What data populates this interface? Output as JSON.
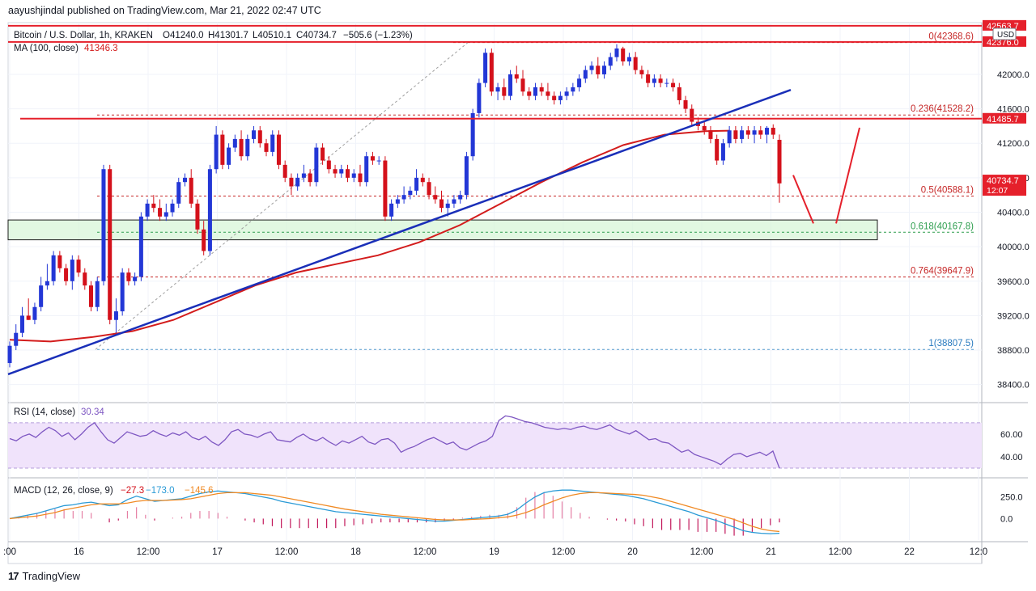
{
  "header": {
    "publisher": "aayushjindal published on TradingView.com, Mar 21, 2022 02:47 UTC"
  },
  "footer": {
    "brand": "TradingView",
    "logo_text": "17"
  },
  "colors": {
    "up": "#2337d6",
    "down": "#d4111b",
    "ma": "#d31c1c",
    "trend": "#1a2fb8",
    "fib": "#c62828",
    "resistance": "#e5202b",
    "rsi": "#7e57c2",
    "rsi_band": "#f0e3fb",
    "macd": "#2a9ad6",
    "signal": "#f08a24",
    "hist": "#e05b8a",
    "support_zone": "#d8f5d8"
  },
  "chart_data": {
    "type": "candlestick",
    "title": "Bitcoin / U.S. Dollar, 1h, KRAKEN",
    "symbol": "Bitcoin / U.S. Dollar, 1h, KRAKEN",
    "ohlc_text": {
      "open": "O41240.0",
      "high": "H41301.7",
      "low": "L40510.1",
      "close": "C40734.7",
      "change": "−505.6 (−1.23%)"
    },
    "ma_label": "MA (100, close)",
    "ma_value": "41346.3",
    "currency": "USD",
    "price_axis": {
      "min": 38200,
      "max": 42600,
      "ticks": [
        "42000.0",
        "41600.0",
        "41200.0",
        "40800.0",
        "40400.0",
        "40000.0",
        "39600.0",
        "39200.0",
        "38800.0",
        "38400.0"
      ]
    },
    "time_axis": {
      "labels": [
        ":00",
        "16",
        "12:00",
        "17",
        "12:00",
        "18",
        "12:00",
        "19",
        "12:00",
        "20",
        "12:00",
        "21",
        "12:00",
        "22",
        "12:0"
      ]
    },
    "price_tags": [
      {
        "text": "42563.7",
        "price": 42563.7,
        "color": "#e5202b"
      },
      {
        "text": "42376.0",
        "price": 42376.0,
        "color": "#e5202b"
      },
      {
        "text": "41485.7",
        "price": 41485.7,
        "color": "#e5202b"
      },
      {
        "text": "40734.7",
        "price": 40770,
        "color": "#e5202b",
        "sub": "12:07"
      }
    ],
    "horizontal_lines": [
      {
        "price": 42563.7,
        "style": "solid",
        "color": "#e5202b"
      },
      {
        "price": 42376.0,
        "style": "solid",
        "color": "#e5202b"
      },
      {
        "price": 41485.7,
        "style": "solid",
        "color": "#e5202b"
      }
    ],
    "fibonacci": [
      {
        "level": "0",
        "price": "42368.6",
        "value": 42368.6
      },
      {
        "level": "0.236",
        "price": "41528.2",
        "value": 41528.2
      },
      {
        "level": "0.5",
        "price": "40588.1",
        "value": 40588.1
      },
      {
        "level": "0.618",
        "price": "40167.8",
        "value": 40167.8
      },
      {
        "level": "0.764",
        "price": "39647.9",
        "value": 39647.9
      },
      {
        "level": "1",
        "price": "38807.5",
        "value": 38807.5
      }
    ],
    "support_zone": {
      "from": 40080,
      "to": 40310
    },
    "trendline": {
      "from": {
        "t": 0,
        "price": 38520
      },
      "to": {
        "t": 1,
        "price": 41820
      }
    },
    "forecast_path": {
      "points": [
        40830,
        40270,
        40270,
        41380
      ]
    },
    "candles": [
      [
        38650,
        38900,
        38600,
        38850
      ],
      [
        38850,
        39100,
        38800,
        39000
      ],
      [
        39000,
        39300,
        38950,
        39200
      ],
      [
        39200,
        39400,
        39150,
        39150
      ],
      [
        39150,
        39350,
        39100,
        39300
      ],
      [
        39300,
        39650,
        39250,
        39550
      ],
      [
        39550,
        39800,
        39500,
        39600
      ],
      [
        39600,
        39950,
        39550,
        39900
      ],
      [
        39900,
        39950,
        39700,
        39750
      ],
      [
        39750,
        39800,
        39550,
        39600
      ],
      [
        39600,
        39900,
        39500,
        39850
      ],
      [
        39850,
        39900,
        39650,
        39700
      ],
      [
        39700,
        39750,
        39500,
        39550
      ],
      [
        39550,
        39600,
        39250,
        39300
      ],
      [
        39300,
        39650,
        39250,
        39600
      ],
      [
        39600,
        40950,
        39550,
        40900
      ],
      [
        40900,
        40950,
        39100,
        39150
      ],
      [
        39150,
        39400,
        39000,
        39250
      ],
      [
        39250,
        39750,
        39200,
        39700
      ],
      [
        39700,
        39750,
        39550,
        39600
      ],
      [
        39600,
        39700,
        39550,
        39650
      ],
      [
        39650,
        40400,
        39600,
        40350
      ],
      [
        40350,
        40550,
        40300,
        40500
      ],
      [
        40500,
        40600,
        40400,
        40450
      ],
      [
        40450,
        40550,
        40300,
        40350
      ],
      [
        40350,
        40500,
        40300,
        40400
      ],
      [
        40400,
        40550,
        40350,
        40500
      ],
      [
        40500,
        40800,
        40450,
        40750
      ],
      [
        40750,
        40850,
        40700,
        40800
      ],
      [
        40800,
        40900,
        40450,
        40500
      ],
      [
        40500,
        40550,
        40150,
        40200
      ],
      [
        40200,
        40300,
        39900,
        39950
      ],
      [
        39950,
        40950,
        39900,
        40900
      ],
      [
        40900,
        41400,
        40850,
        41300
      ],
      [
        41300,
        41350,
        40900,
        40950
      ],
      [
        40950,
        41200,
        40900,
        41150
      ],
      [
        41150,
        41300,
        41100,
        41250
      ],
      [
        41250,
        41350,
        41000,
        41050
      ],
      [
        41050,
        41300,
        41000,
        41250
      ],
      [
        41250,
        41400,
        41200,
        41350
      ],
      [
        41350,
        41400,
        41150,
        41200
      ],
      [
        41200,
        41250,
        41050,
        41100
      ],
      [
        41100,
        41350,
        41050,
        41300
      ],
      [
        41300,
        41350,
        40900,
        40950
      ],
      [
        40950,
        41000,
        40750,
        40800
      ],
      [
        40800,
        40850,
        40600,
        40700
      ],
      [
        40700,
        40850,
        40650,
        40800
      ],
      [
        40800,
        40950,
        40750,
        40850
      ],
      [
        40850,
        40900,
        40700,
        40750
      ],
      [
        40750,
        41200,
        40700,
        41150
      ],
      [
        41150,
        41200,
        40950,
        41000
      ],
      [
        41000,
        41050,
        40850,
        40900
      ],
      [
        40900,
        40950,
        40800,
        40850
      ],
      [
        40850,
        40950,
        40800,
        40900
      ],
      [
        40900,
        40950,
        40750,
        40800
      ],
      [
        40800,
        40900,
        40750,
        40850
      ],
      [
        40850,
        40950,
        40700,
        40750
      ],
      [
        40750,
        41100,
        40700,
        41050
      ],
      [
        41050,
        41100,
        40950,
        41000
      ],
      [
        41000,
        41050,
        40950,
        41000
      ],
      [
        41000,
        41050,
        40300,
        40350
      ],
      [
        40350,
        40550,
        40300,
        40500
      ],
      [
        40500,
        40600,
        40450,
        40550
      ],
      [
        40550,
        40700,
        40500,
        40600
      ],
      [
        40600,
        40700,
        40550,
        40650
      ],
      [
        40650,
        40900,
        40600,
        40800
      ],
      [
        40800,
        40850,
        40700,
        40750
      ],
      [
        40750,
        40800,
        40550,
        40600
      ],
      [
        40600,
        40700,
        40500,
        40550
      ],
      [
        40550,
        40650,
        40400,
        40450
      ],
      [
        40450,
        40550,
        40350,
        40500
      ],
      [
        40500,
        40600,
        40450,
        40550
      ],
      [
        40550,
        40650,
        40500,
        40600
      ],
      [
        40600,
        41100,
        40550,
        41050
      ],
      [
        41050,
        41600,
        41000,
        41550
      ],
      [
        41550,
        41950,
        41500,
        41900
      ],
      [
        41900,
        42300,
        41850,
        42250
      ],
      [
        42250,
        42300,
        41750,
        41800
      ],
      [
        41800,
        41900,
        41700,
        41850
      ],
      [
        41850,
        41950,
        41700,
        41750
      ],
      [
        41750,
        42050,
        41700,
        42000
      ],
      [
        42000,
        42100,
        41900,
        41950
      ],
      [
        41950,
        42050,
        41750,
        41800
      ],
      [
        41800,
        41850,
        41700,
        41750
      ],
      [
        41750,
        41900,
        41700,
        41850
      ],
      [
        41850,
        41900,
        41750,
        41800
      ],
      [
        41800,
        41900,
        41700,
        41750
      ],
      [
        41750,
        41800,
        41650,
        41700
      ],
      [
        41700,
        41800,
        41650,
        41750
      ],
      [
        41750,
        41850,
        41700,
        41800
      ],
      [
        41800,
        41900,
        41750,
        41850
      ],
      [
        41850,
        42000,
        41800,
        41950
      ],
      [
        41950,
        42100,
        41900,
        42050
      ],
      [
        42050,
        42150,
        42000,
        42100
      ],
      [
        42100,
        42200,
        41950,
        42000
      ],
      [
        42000,
        42150,
        41950,
        42100
      ],
      [
        42100,
        42250,
        42050,
        42200
      ],
      [
        42200,
        42350,
        42150,
        42300
      ],
      [
        42300,
        42320,
        42100,
        42150
      ],
      [
        42150,
        42250,
        42100,
        42200
      ],
      [
        42200,
        42260,
        42000,
        42050
      ],
      [
        42050,
        42100,
        41950,
        42000
      ],
      [
        42000,
        42050,
        41850,
        41900
      ],
      [
        41900,
        42000,
        41850,
        41950
      ],
      [
        41950,
        42000,
        41850,
        41900
      ],
      [
        41900,
        41950,
        41850,
        41900
      ],
      [
        41900,
        41950,
        41800,
        41850
      ],
      [
        41850,
        41900,
        41650,
        41700
      ],
      [
        41700,
        41750,
        41550,
        41600
      ],
      [
        41600,
        41650,
        41400,
        41450
      ],
      [
        41450,
        41500,
        41350,
        41400
      ],
      [
        41400,
        41450,
        41300,
        41350
      ],
      [
        41350,
        41400,
        41200,
        41250
      ],
      [
        41250,
        41300,
        40950,
        41000
      ],
      [
        41000,
        41250,
        40950,
        41200
      ],
      [
        41200,
        41400,
        41150,
        41350
      ],
      [
        41350,
        41400,
        41200,
        41250
      ],
      [
        41250,
        41400,
        41200,
        41350
      ],
      [
        41350,
        41400,
        41250,
        41300
      ],
      [
        41300,
        41400,
        41200,
        41350
      ],
      [
        41350,
        41400,
        41250,
        41300
      ],
      [
        41300,
        41400,
        41200,
        41380
      ],
      [
        41380,
        41420,
        41250,
        41300
      ],
      [
        41240,
        41302,
        40510,
        40735
      ]
    ],
    "ma100": [
      [
        0,
        38920
      ],
      [
        0.05,
        38900
      ],
      [
        0.1,
        38950
      ],
      [
        0.15,
        39020
      ],
      [
        0.2,
        39150
      ],
      [
        0.25,
        39350
      ],
      [
        0.3,
        39550
      ],
      [
        0.35,
        39700
      ],
      [
        0.4,
        39800
      ],
      [
        0.45,
        39900
      ],
      [
        0.5,
        40050
      ],
      [
        0.55,
        40250
      ],
      [
        0.6,
        40500
      ],
      [
        0.65,
        40750
      ],
      [
        0.7,
        40980
      ],
      [
        0.75,
        41180
      ],
      [
        0.8,
        41300
      ],
      [
        0.85,
        41340
      ],
      [
        0.88,
        41346
      ]
    ],
    "rsi": {
      "label": "RSI (14, close)",
      "value": "30.34",
      "ticks": [
        "60.00",
        "40.00"
      ],
      "values": [
        56,
        54,
        58,
        60,
        57,
        62,
        66,
        63,
        58,
        61,
        55,
        60,
        66,
        70,
        62,
        55,
        52,
        57,
        62,
        60,
        58,
        59,
        63,
        60,
        58,
        61,
        59,
        62,
        57,
        55,
        58,
        53,
        50,
        55,
        62,
        64,
        60,
        59,
        57,
        60,
        62,
        55,
        54,
        53,
        57,
        60,
        56,
        54,
        57,
        53,
        50,
        54,
        52,
        55,
        58,
        53,
        51,
        55,
        56,
        52,
        44,
        47,
        49,
        52,
        55,
        57,
        54,
        51,
        53,
        48,
        46,
        49,
        52,
        54,
        58,
        72,
        76,
        75,
        73,
        71,
        70,
        68,
        66,
        65,
        64,
        65,
        64,
        66,
        67,
        65,
        64,
        66,
        68,
        64,
        62,
        60,
        63,
        59,
        55,
        56,
        53,
        52,
        48,
        44,
        46,
        42,
        40,
        38,
        36,
        33,
        38,
        42,
        43,
        40,
        42,
        44,
        41,
        45,
        30
      ]
    },
    "macd": {
      "label": "MACD (12, 26, close, 9)",
      "values_text": [
        "−27.3",
        "−173.0",
        "−145.6"
      ],
      "ticks": [
        "250.0",
        "0.0"
      ],
      "macd": [
        0,
        20,
        40,
        60,
        90,
        120,
        150,
        160,
        180,
        190,
        170,
        150,
        160,
        220,
        260,
        230,
        200,
        210,
        220,
        230,
        260,
        290,
        310,
        320,
        310,
        300,
        290,
        270,
        250,
        230,
        200,
        180,
        160,
        140,
        120,
        100,
        80,
        70,
        60,
        50,
        40,
        30,
        20,
        10,
        0,
        -10,
        -20,
        -30,
        -30,
        -20,
        -10,
        0,
        10,
        20,
        30,
        50,
        100,
        180,
        250,
        300,
        320,
        330,
        330,
        320,
        310,
        300,
        290,
        280,
        270,
        250,
        230,
        200,
        170,
        140,
        110,
        80,
        40,
        10,
        -20,
        -60,
        -100,
        -140,
        -160,
        -170,
        -175,
        -170
      ],
      "signal": [
        0,
        10,
        20,
        30,
        50,
        70,
        100,
        120,
        140,
        160,
        170,
        170,
        170,
        180,
        200,
        210,
        210,
        210,
        215,
        220,
        230,
        250,
        270,
        290,
        300,
        300,
        300,
        290,
        280,
        270,
        250,
        230,
        210,
        190,
        170,
        150,
        130,
        110,
        95,
        80,
        65,
        50,
        40,
        30,
        20,
        10,
        0,
        -10,
        -15,
        -15,
        -15,
        -10,
        -5,
        0,
        10,
        20,
        40,
        70,
        110,
        160,
        200,
        240,
        270,
        290,
        300,
        300,
        295,
        290,
        285,
        280,
        270,
        250,
        230,
        200,
        170,
        140,
        110,
        80,
        50,
        20,
        -10,
        -50,
        -90,
        -120,
        -140,
        -150
      ]
    }
  }
}
